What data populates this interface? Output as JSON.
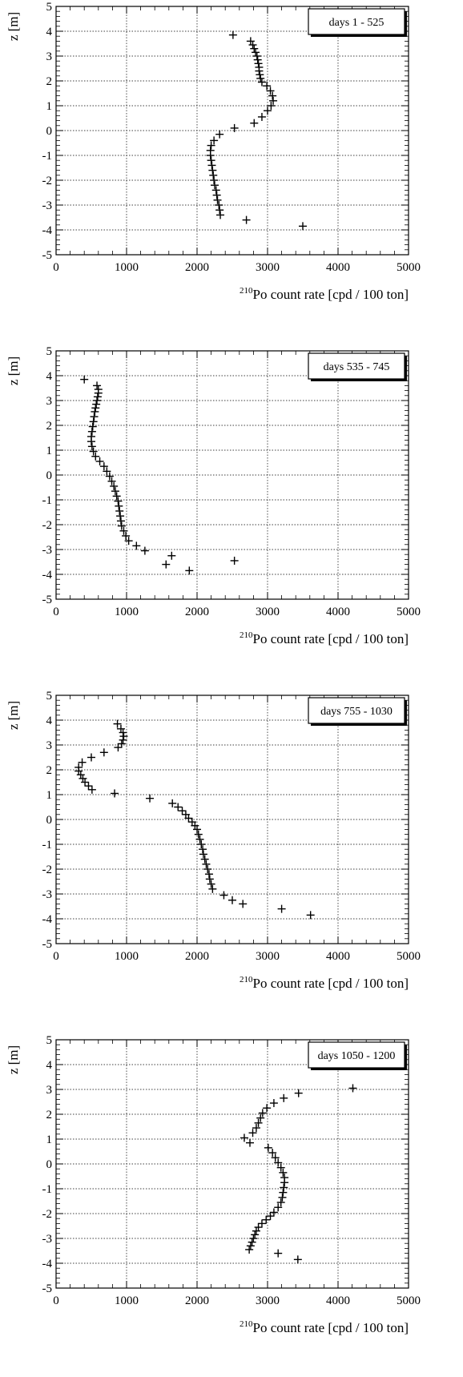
{
  "chart_data": [
    {
      "type": "scatter",
      "legend": "days 1 - 525",
      "legend_position": "top-right",
      "xlabel_sup": "210",
      "xlabel": "Po count rate [cpd / 100 ton]",
      "ylabel": "z [m]",
      "xlim": [
        0,
        5000
      ],
      "ylim": [
        -5,
        5
      ],
      "xticks": [
        "0",
        "1000",
        "2000",
        "3000",
        "4000",
        "5000"
      ],
      "yticks": [
        "-5",
        "-4",
        "-3",
        "-2",
        "-1",
        "0",
        "1",
        "2",
        "3",
        "4",
        "5"
      ],
      "grid": true,
      "points": [
        {
          "x": 2510,
          "y": 3.85
        },
        {
          "x": 2760,
          "y": 3.6
        },
        {
          "x": 2790,
          "y": 3.45
        },
        {
          "x": 2810,
          "y": 3.3
        },
        {
          "x": 2830,
          "y": 3.15
        },
        {
          "x": 2850,
          "y": 3.0
        },
        {
          "x": 2860,
          "y": 2.85
        },
        {
          "x": 2870,
          "y": 2.7
        },
        {
          "x": 2880,
          "y": 2.55
        },
        {
          "x": 2880,
          "y": 2.4
        },
        {
          "x": 2890,
          "y": 2.25
        },
        {
          "x": 2900,
          "y": 2.1
        },
        {
          "x": 2920,
          "y": 1.95
        },
        {
          "x": 2990,
          "y": 1.8
        },
        {
          "x": 3040,
          "y": 1.6
        },
        {
          "x": 3070,
          "y": 1.4
        },
        {
          "x": 3080,
          "y": 1.2
        },
        {
          "x": 3050,
          "y": 1.0
        },
        {
          "x": 3000,
          "y": 0.8
        },
        {
          "x": 2920,
          "y": 0.55
        },
        {
          "x": 2810,
          "y": 0.3
        },
        {
          "x": 2530,
          "y": 0.1
        },
        {
          "x": 2320,
          "y": -0.15
        },
        {
          "x": 2240,
          "y": -0.4
        },
        {
          "x": 2200,
          "y": -0.6
        },
        {
          "x": 2190,
          "y": -0.8
        },
        {
          "x": 2190,
          "y": -1.0
        },
        {
          "x": 2200,
          "y": -1.2
        },
        {
          "x": 2210,
          "y": -1.4
        },
        {
          "x": 2220,
          "y": -1.6
        },
        {
          "x": 2230,
          "y": -1.8
        },
        {
          "x": 2240,
          "y": -2.0
        },
        {
          "x": 2250,
          "y": -2.2
        },
        {
          "x": 2270,
          "y": -2.4
        },
        {
          "x": 2280,
          "y": -2.6
        },
        {
          "x": 2290,
          "y": -2.8
        },
        {
          "x": 2310,
          "y": -3.0
        },
        {
          "x": 2320,
          "y": -3.2
        },
        {
          "x": 2330,
          "y": -3.4
        },
        {
          "x": 2700,
          "y": -3.6
        },
        {
          "x": 3500,
          "y": -3.85
        }
      ]
    },
    {
      "type": "scatter",
      "legend": "days 535 - 745",
      "legend_position": "top-right",
      "xlabel_sup": "210",
      "xlabel": "Po count rate [cpd / 100 ton]",
      "ylabel": "z [m]",
      "xlim": [
        0,
        5000
      ],
      "ylim": [
        -5,
        5
      ],
      "xticks": [
        "0",
        "1000",
        "2000",
        "3000",
        "4000",
        "5000"
      ],
      "yticks": [
        "-5",
        "-4",
        "-3",
        "-2",
        "-1",
        "0",
        "1",
        "2",
        "3",
        "4",
        "5"
      ],
      "grid": true,
      "points": [
        {
          "x": 400,
          "y": 3.85
        },
        {
          "x": 580,
          "y": 3.6
        },
        {
          "x": 600,
          "y": 3.45
        },
        {
          "x": 600,
          "y": 3.3
        },
        {
          "x": 590,
          "y": 3.15
        },
        {
          "x": 580,
          "y": 3.0
        },
        {
          "x": 570,
          "y": 2.85
        },
        {
          "x": 560,
          "y": 2.7
        },
        {
          "x": 550,
          "y": 2.55
        },
        {
          "x": 540,
          "y": 2.35
        },
        {
          "x": 530,
          "y": 2.15
        },
        {
          "x": 520,
          "y": 1.95
        },
        {
          "x": 510,
          "y": 1.75
        },
        {
          "x": 500,
          "y": 1.55
        },
        {
          "x": 500,
          "y": 1.35
        },
        {
          "x": 510,
          "y": 1.15
        },
        {
          "x": 530,
          "y": 0.95
        },
        {
          "x": 560,
          "y": 0.75
        },
        {
          "x": 620,
          "y": 0.55
        },
        {
          "x": 680,
          "y": 0.35
        },
        {
          "x": 720,
          "y": 0.15
        },
        {
          "x": 760,
          "y": -0.05
        },
        {
          "x": 790,
          "y": -0.25
        },
        {
          "x": 820,
          "y": -0.45
        },
        {
          "x": 840,
          "y": -0.65
        },
        {
          "x": 860,
          "y": -0.85
        },
        {
          "x": 880,
          "y": -1.05
        },
        {
          "x": 890,
          "y": -1.25
        },
        {
          "x": 900,
          "y": -1.45
        },
        {
          "x": 910,
          "y": -1.65
        },
        {
          "x": 920,
          "y": -1.85
        },
        {
          "x": 930,
          "y": -2.05
        },
        {
          "x": 960,
          "y": -2.25
        },
        {
          "x": 990,
          "y": -2.45
        },
        {
          "x": 1030,
          "y": -2.65
        },
        {
          "x": 1140,
          "y": -2.85
        },
        {
          "x": 1260,
          "y": -3.05
        },
        {
          "x": 1640,
          "y": -3.25
        },
        {
          "x": 1560,
          "y": -3.6
        },
        {
          "x": 1890,
          "y": -3.85
        },
        {
          "x": 2530,
          "y": -3.45
        }
      ]
    },
    {
      "type": "scatter",
      "legend": "days 755 - 1030",
      "legend_position": "top-right",
      "xlabel_sup": "210",
      "xlabel": "Po count rate [cpd / 100 ton]",
      "ylabel": "z [m]",
      "xlim": [
        0,
        5000
      ],
      "ylim": [
        -5,
        5
      ],
      "xticks": [
        "0",
        "1000",
        "2000",
        "3000",
        "4000",
        "5000"
      ],
      "yticks": [
        "-5",
        "-4",
        "-3",
        "-2",
        "-1",
        "0",
        "1",
        "2",
        "3",
        "4",
        "5"
      ],
      "grid": true,
      "points": [
        {
          "x": 870,
          "y": 3.85
        },
        {
          "x": 920,
          "y": 3.65
        },
        {
          "x": 950,
          "y": 3.5
        },
        {
          "x": 960,
          "y": 3.35
        },
        {
          "x": 950,
          "y": 3.2
        },
        {
          "x": 930,
          "y": 3.05
        },
        {
          "x": 880,
          "y": 2.9
        },
        {
          "x": 680,
          "y": 2.7
        },
        {
          "x": 500,
          "y": 2.5
        },
        {
          "x": 370,
          "y": 2.3
        },
        {
          "x": 320,
          "y": 2.1
        },
        {
          "x": 320,
          "y": 1.95
        },
        {
          "x": 350,
          "y": 1.8
        },
        {
          "x": 380,
          "y": 1.65
        },
        {
          "x": 410,
          "y": 1.5
        },
        {
          "x": 460,
          "y": 1.35
        },
        {
          "x": 510,
          "y": 1.2
        },
        {
          "x": 830,
          "y": 1.05
        },
        {
          "x": 1330,
          "y": 0.85
        },
        {
          "x": 1650,
          "y": 0.65
        },
        {
          "x": 1730,
          "y": 0.5
        },
        {
          "x": 1790,
          "y": 0.35
        },
        {
          "x": 1840,
          "y": 0.2
        },
        {
          "x": 1880,
          "y": 0.05
        },
        {
          "x": 1930,
          "y": -0.1
        },
        {
          "x": 1970,
          "y": -0.25
        },
        {
          "x": 2000,
          "y": -0.4
        },
        {
          "x": 2020,
          "y": -0.6
        },
        {
          "x": 2040,
          "y": -0.8
        },
        {
          "x": 2060,
          "y": -1.0
        },
        {
          "x": 2080,
          "y": -1.2
        },
        {
          "x": 2090,
          "y": -1.4
        },
        {
          "x": 2110,
          "y": -1.6
        },
        {
          "x": 2130,
          "y": -1.8
        },
        {
          "x": 2150,
          "y": -2.0
        },
        {
          "x": 2170,
          "y": -2.2
        },
        {
          "x": 2180,
          "y": -2.4
        },
        {
          "x": 2200,
          "y": -2.6
        },
        {
          "x": 2220,
          "y": -2.8
        },
        {
          "x": 2380,
          "y": -3.05
        },
        {
          "x": 2500,
          "y": -3.25
        },
        {
          "x": 2650,
          "y": -3.4
        },
        {
          "x": 3200,
          "y": -3.6
        },
        {
          "x": 3610,
          "y": -3.85
        }
      ]
    },
    {
      "type": "scatter",
      "legend": "days 1050 - 1200",
      "legend_position": "top-right",
      "xlabel_sup": "210",
      "xlabel": "Po count rate [cpd / 100 ton]",
      "ylabel": "z [m]",
      "xlim": [
        0,
        5000
      ],
      "ylim": [
        -5,
        5
      ],
      "xticks": [
        "0",
        "1000",
        "2000",
        "3000",
        "4000",
        "5000"
      ],
      "yticks": [
        "-5",
        "-4",
        "-3",
        "-2",
        "-1",
        "0",
        "1",
        "2",
        "3",
        "4",
        "5"
      ],
      "grid": true,
      "points": [
        {
          "x": 4210,
          "y": 3.05
        },
        {
          "x": 3440,
          "y": 2.85
        },
        {
          "x": 3230,
          "y": 2.65
        },
        {
          "x": 3090,
          "y": 2.45
        },
        {
          "x": 2990,
          "y": 2.25
        },
        {
          "x": 2930,
          "y": 2.05
        },
        {
          "x": 2900,
          "y": 1.85
        },
        {
          "x": 2870,
          "y": 1.65
        },
        {
          "x": 2840,
          "y": 1.45
        },
        {
          "x": 2790,
          "y": 1.25
        },
        {
          "x": 2670,
          "y": 1.05
        },
        {
          "x": 2750,
          "y": 0.85
        },
        {
          "x": 3010,
          "y": 0.65
        },
        {
          "x": 3070,
          "y": 0.45
        },
        {
          "x": 3110,
          "y": 0.25
        },
        {
          "x": 3150,
          "y": 0.05
        },
        {
          "x": 3190,
          "y": -0.15
        },
        {
          "x": 3220,
          "y": -0.35
        },
        {
          "x": 3240,
          "y": -0.55
        },
        {
          "x": 3240,
          "y": -0.75
        },
        {
          "x": 3230,
          "y": -0.95
        },
        {
          "x": 3220,
          "y": -1.15
        },
        {
          "x": 3210,
          "y": -1.35
        },
        {
          "x": 3190,
          "y": -1.55
        },
        {
          "x": 3150,
          "y": -1.75
        },
        {
          "x": 3090,
          "y": -1.95
        },
        {
          "x": 3040,
          "y": -2.1
        },
        {
          "x": 2980,
          "y": -2.25
        },
        {
          "x": 2920,
          "y": -2.4
        },
        {
          "x": 2870,
          "y": -2.55
        },
        {
          "x": 2840,
          "y": -2.7
        },
        {
          "x": 2820,
          "y": -2.85
        },
        {
          "x": 2800,
          "y": -3.0
        },
        {
          "x": 2780,
          "y": -3.15
        },
        {
          "x": 2760,
          "y": -3.3
        },
        {
          "x": 2740,
          "y": -3.45
        },
        {
          "x": 3150,
          "y": -3.6
        },
        {
          "x": 3430,
          "y": -3.85
        }
      ]
    }
  ]
}
